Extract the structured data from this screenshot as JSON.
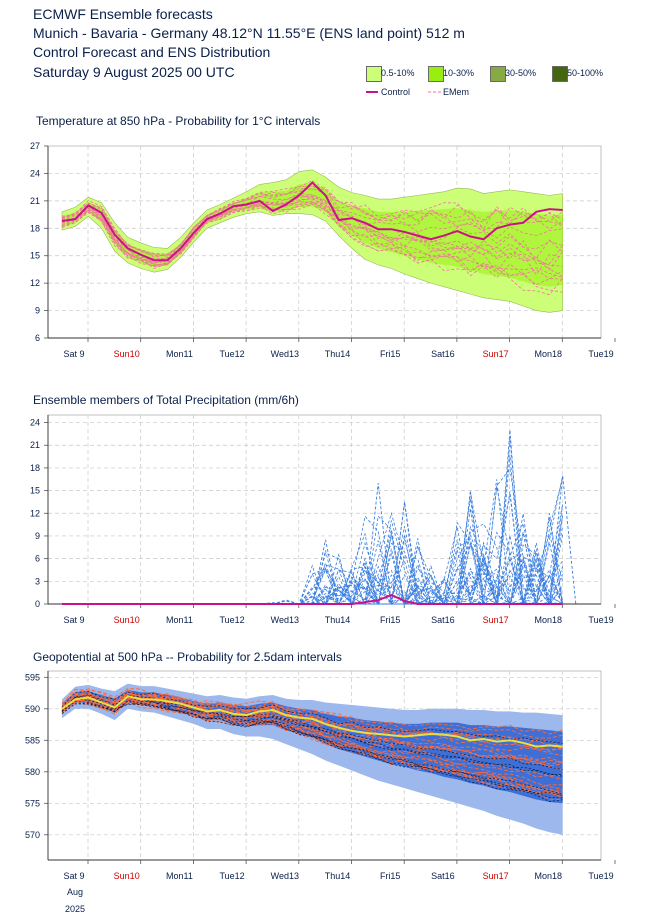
{
  "header": {
    "line1": "ECMWF Ensemble forecasts",
    "line2": "Munich - Bavaria - Germany 48.12°N 11.55°E (ENS land point) 512 m",
    "line3": "Control Forecast and ENS Distribution",
    "line4": "Saturday  9 August 2025 00 UTC"
  },
  "legend": {
    "prob_labels": [
      "0.5-10%",
      "10-30%",
      "30-50%",
      "50-100%"
    ],
    "prob_colors": [
      "#ccff77",
      "#99ee11",
      "#88aa44",
      "#446611"
    ],
    "control_label": "Control",
    "control_color": "#cc1188",
    "emem_label": "EMem",
    "emem_color": "#ee7799"
  },
  "x_axis": {
    "labels": [
      "Sat 9",
      "Sun10",
      "Mon11",
      "Tue12",
      "Wed13",
      "Thu14",
      "Fri15",
      "Sat16",
      "Sun17",
      "Mon18",
      "Tue19"
    ],
    "red_labels": [
      "Sun10",
      "Sun17"
    ],
    "month_label": "Aug",
    "year_label": "2025"
  },
  "chart_data": [
    {
      "type": "area",
      "title": "Temperature at 850 hPa - Probability for 1°C intervals",
      "ylim": [
        6,
        27
      ],
      "yticks": [
        6,
        9,
        12,
        15,
        18,
        21,
        24,
        27
      ],
      "grid": true,
      "x_unit": "days from Sat 9 00 UTC",
      "control": {
        "name": "Control",
        "x": [
          0,
          0.25,
          0.5,
          0.75,
          1,
          1.25,
          1.5,
          1.75,
          2,
          2.25,
          2.5,
          2.75,
          3,
          3.25,
          3.5,
          3.75,
          4,
          4.25,
          4.5,
          4.75,
          5,
          5.25,
          5.5,
          5.75,
          6,
          6.25,
          6.5,
          6.75,
          7,
          7.25,
          7.5,
          7.75,
          8,
          8.25,
          8.5,
          8.75,
          9,
          9.25,
          9.5
        ],
        "y": [
          18.8,
          19.0,
          20.5,
          19.7,
          17.3,
          15.8,
          15.1,
          14.5,
          14.5,
          15.8,
          17.5,
          19.0,
          19.6,
          20.4,
          20.6,
          21.0,
          19.9,
          20.6,
          21.6,
          23.0,
          21.6,
          18.9,
          19.1,
          18.6,
          17.9,
          17.9,
          17.6,
          17.2,
          16.8,
          17.2,
          17.7,
          17.1,
          16.8,
          18.0,
          18.4,
          18.6,
          19.8,
          20.1,
          20.0
        ]
      },
      "envelope_p0_5": {
        "lower": [
          17.8,
          18.2,
          19.3,
          18.0,
          15.5,
          14.2,
          13.6,
          13.2,
          13.5,
          14.8,
          16.5,
          18.0,
          18.6,
          19.2,
          19.6,
          19.8,
          19.4,
          19.6,
          19.6,
          19.5,
          18.8,
          17.2,
          15.8,
          14.6,
          14.0,
          13.6,
          13.0,
          12.5,
          12.0,
          11.6,
          11.2,
          10.8,
          10.4,
          10.2,
          10.0,
          9.5,
          9.0,
          8.8,
          9.0
        ],
        "upper": [
          19.8,
          20.3,
          21.4,
          20.8,
          18.6,
          17.0,
          16.4,
          15.9,
          15.8,
          17.0,
          18.6,
          20.0,
          20.6,
          21.3,
          22.0,
          22.8,
          23.0,
          23.3,
          24.2,
          24.4,
          23.6,
          22.5,
          21.9,
          21.6,
          21.2,
          21.2,
          21.4,
          21.6,
          21.8,
          22.0,
          22.4,
          22.3,
          21.8,
          22.0,
          22.2,
          22.0,
          21.8,
          21.6,
          21.8
        ]
      },
      "envelope_p10_30": {
        "lower": [
          18.2,
          18.6,
          19.8,
          18.8,
          16.3,
          14.8,
          14.2,
          13.8,
          14.0,
          15.3,
          17.0,
          18.6,
          19.1,
          19.8,
          20.0,
          20.2,
          19.8,
          20.0,
          20.3,
          20.4,
          19.8,
          18.2,
          17.2,
          16.4,
          15.8,
          15.4,
          15.0,
          14.6,
          14.2,
          14.0,
          13.8,
          13.4,
          13.0,
          12.8,
          12.6,
          12.2,
          11.8,
          11.6,
          11.8
        ],
        "upper": [
          19.3,
          19.7,
          20.9,
          20.2,
          17.8,
          16.3,
          15.7,
          15.2,
          15.2,
          16.4,
          18.1,
          19.5,
          20.1,
          20.8,
          21.3,
          21.9,
          22.0,
          22.1,
          22.8,
          23.0,
          22.2,
          20.8,
          20.4,
          20.2,
          19.8,
          19.8,
          19.8,
          19.9,
          20.0,
          20.1,
          20.2,
          20.0,
          19.8,
          19.9,
          20.0,
          19.8,
          19.6,
          19.4,
          19.5
        ]
      },
      "ensemble_member_count": 50
    },
    {
      "type": "line",
      "title": "Ensemble members of Total Precipitation (mm/6h)",
      "ylim": [
        0,
        25
      ],
      "yticks": [
        0,
        3,
        6,
        9,
        12,
        15,
        18,
        21,
        24
      ],
      "grid": true,
      "control": {
        "name": "Control",
        "x": [
          0,
          1,
          2,
          3,
          4,
          4.75,
          5,
          5.5,
          6,
          6.25,
          6.5,
          6.75,
          7,
          7.5,
          8,
          8.5,
          9,
          9.5
        ],
        "y": [
          0,
          0,
          0,
          0,
          0,
          0,
          0,
          0,
          0.5,
          1.2,
          0.4,
          0,
          0,
          0,
          0,
          0,
          0,
          0
        ]
      },
      "member_peaks": [
        {
          "x": 5.0,
          "y": 8.5
        },
        {
          "x": 5.25,
          "y": 6.5
        },
        {
          "x": 5.75,
          "y": 6.0
        },
        {
          "x": 6.0,
          "y": 16.0
        },
        {
          "x": 6.5,
          "y": 13.5
        },
        {
          "x": 7.0,
          "y": 5.0
        },
        {
          "x": 7.75,
          "y": 15.0
        },
        {
          "x": 8.0,
          "y": 6.5
        },
        {
          "x": 8.5,
          "y": 23.0
        },
        {
          "x": 8.75,
          "y": 9.5
        },
        {
          "x": 9.25,
          "y": 12.0
        },
        {
          "x": 9.5,
          "y": 17.0
        }
      ]
    },
    {
      "type": "area",
      "title": "Geopotential at 500 hPa -- Probability for 2.5dam intervals",
      "ylim": [
        566,
        596
      ],
      "yticks": [
        570,
        575,
        580,
        585,
        590,
        595
      ],
      "grid": true,
      "control": {
        "name": "Control",
        "x": [
          0,
          0.25,
          0.5,
          0.75,
          1,
          1.25,
          1.5,
          1.75,
          2,
          2.25,
          2.5,
          2.75,
          3,
          3.25,
          3.5,
          3.75,
          4,
          4.25,
          4.5,
          4.75,
          5,
          5.25,
          5.5,
          5.75,
          6,
          6.25,
          6.5,
          6.75,
          7,
          7.25,
          7.5,
          7.75,
          8,
          8.25,
          8.5,
          8.75,
          9,
          9.25,
          9.5
        ],
        "y": [
          590.0,
          591.5,
          591.8,
          591.0,
          590.2,
          592.0,
          591.5,
          591.5,
          591.2,
          590.8,
          590.2,
          589.6,
          589.8,
          589.2,
          589.0,
          589.6,
          589.8,
          589.0,
          588.6,
          588.4,
          587.6,
          587.0,
          586.5,
          586.2,
          586.0,
          585.8,
          585.6,
          585.8,
          586.0,
          585.9,
          585.6,
          585.0,
          585.2,
          584.8,
          585.0,
          584.6,
          584.0,
          584.2,
          584.0
        ]
      },
      "envelope_outer": {
        "lower": [
          588.5,
          590.0,
          590.0,
          589.2,
          588.2,
          590.0,
          589.6,
          589.4,
          588.8,
          588.2,
          587.6,
          586.8,
          586.8,
          586.0,
          585.6,
          585.6,
          585.2,
          584.4,
          583.6,
          582.8,
          581.8,
          581.0,
          580.2,
          579.4,
          578.6,
          578.0,
          577.4,
          576.8,
          576.2,
          575.6,
          575.0,
          574.4,
          573.8,
          573.0,
          572.4,
          571.8,
          571.0,
          570.4,
          570.0
        ],
        "upper": [
          591.5,
          593.5,
          593.8,
          593.2,
          592.8,
          594.0,
          593.6,
          593.6,
          593.2,
          592.8,
          592.4,
          592.0,
          592.2,
          591.8,
          591.6,
          592.0,
          592.2,
          591.6,
          591.4,
          591.4,
          591.0,
          590.8,
          590.6,
          590.4,
          590.2,
          590.0,
          589.8,
          589.8,
          590.0,
          590.0,
          590.0,
          589.8,
          589.8,
          589.6,
          589.6,
          589.4,
          589.4,
          589.2,
          589.0
        ]
      },
      "envelope_inner": {
        "lower": [
          589.4,
          591.0,
          591.0,
          590.2,
          589.4,
          591.0,
          590.6,
          590.4,
          589.8,
          589.4,
          588.8,
          588.2,
          588.2,
          587.6,
          587.2,
          587.4,
          587.4,
          586.6,
          586.0,
          585.4,
          584.4,
          583.6,
          583.0,
          582.4,
          581.8,
          581.2,
          580.8,
          580.2,
          579.8,
          579.2,
          578.8,
          578.2,
          577.8,
          577.2,
          576.8,
          576.2,
          575.6,
          575.2,
          575.0
        ],
        "upper": [
          590.8,
          592.6,
          592.8,
          592.2,
          591.6,
          593.0,
          592.6,
          592.6,
          592.2,
          591.8,
          591.2,
          590.8,
          591.0,
          590.6,
          590.4,
          590.8,
          591.0,
          590.4,
          590.0,
          589.8,
          589.2,
          588.8,
          588.6,
          588.2,
          588.0,
          587.8,
          587.6,
          587.6,
          587.8,
          587.8,
          587.8,
          587.4,
          587.4,
          587.2,
          587.2,
          587.0,
          586.8,
          586.6,
          586.4
        ]
      },
      "ensemble_member_count": 50
    }
  ]
}
